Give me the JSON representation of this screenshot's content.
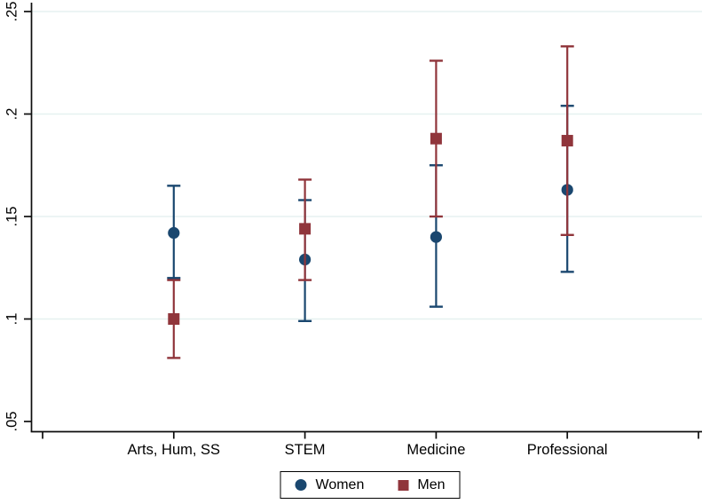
{
  "chart_data": {
    "type": "scatter",
    "title": "",
    "xlabel": "",
    "ylabel": "",
    "categories": [
      "Arts, Hum, SS",
      "STEM",
      "Medicine",
      "Professional"
    ],
    "y_axis": {
      "range": [
        0.05,
        0.25
      ],
      "tick_values": [
        0.05,
        0.1,
        0.15,
        0.2,
        0.25
      ],
      "tick_labels": [
        ".05",
        ".1",
        ".15",
        ".2",
        ".25"
      ],
      "gridline_values": [
        0.1,
        0.15,
        0.2,
        0.25
      ]
    },
    "grid": true,
    "error_bars": true,
    "legend_position": "bottom-center",
    "series": [
      {
        "name": "Women",
        "marker": "circle",
        "color": "#1a476f",
        "points": [
          {
            "category": "Arts, Hum, SS",
            "estimate": 0.142,
            "ci_low": 0.12,
            "ci_high": 0.165
          },
          {
            "category": "STEM",
            "estimate": 0.129,
            "ci_low": 0.099,
            "ci_high": 0.158
          },
          {
            "category": "Medicine",
            "estimate": 0.14,
            "ci_low": 0.106,
            "ci_high": 0.175
          },
          {
            "category": "Professional",
            "estimate": 0.163,
            "ci_low": 0.123,
            "ci_high": 0.204
          }
        ]
      },
      {
        "name": "Men",
        "marker": "square",
        "color": "#90353b",
        "points": [
          {
            "category": "Arts, Hum, SS",
            "estimate": 0.1,
            "ci_low": 0.081,
            "ci_high": 0.119
          },
          {
            "category": "STEM",
            "estimate": 0.144,
            "ci_low": 0.119,
            "ci_high": 0.168
          },
          {
            "category": "Medicine",
            "estimate": 0.188,
            "ci_low": 0.15,
            "ci_high": 0.226
          },
          {
            "category": "Professional",
            "estimate": 0.187,
            "ci_low": 0.141,
            "ci_high": 0.233
          }
        ]
      }
    ]
  },
  "colors": {
    "women": "#1a476f",
    "men": "#90353b",
    "gridline": "#e6f1f0",
    "axis": "#0d0d0d",
    "text": "#000000"
  }
}
